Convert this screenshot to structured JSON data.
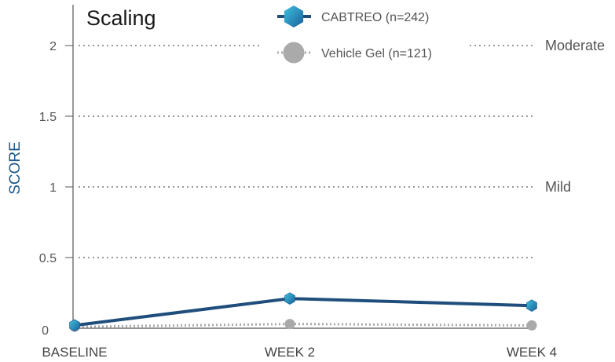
{
  "chart_data": {
    "type": "line",
    "title": "Scaling",
    "ylabel": "SCORE",
    "xlabel": "",
    "categories": [
      "BASELINE",
      "WEEK 2",
      "WEEK 4"
    ],
    "ylim": [
      0,
      2.2
    ],
    "yticks": [
      "0",
      "0.5",
      "1",
      "1.5",
      "2"
    ],
    "ytick_values": [
      0,
      0.5,
      1,
      1.5,
      2
    ],
    "grid": true,
    "legend": "top-center",
    "reference_labels": [
      {
        "label": "Moderate",
        "value": 2
      },
      {
        "label": "Mild",
        "value": 1
      }
    ],
    "series": [
      {
        "name": "CABTREO (n=242)",
        "values": [
          0.02,
          0.21,
          0.16
        ],
        "color": "#1f4e7d",
        "marker": "hexagon-gradient-blue"
      },
      {
        "name": "Vehicle Gel (n=121)",
        "values": [
          0.01,
          0.03,
          0.02
        ],
        "color": "#aaaaaa",
        "marker": "circle-gray"
      }
    ]
  }
}
